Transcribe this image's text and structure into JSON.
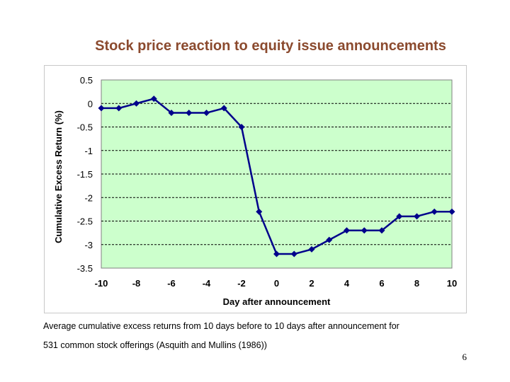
{
  "slide": {
    "title": "Stock price reaction to equity issue announcements",
    "caption_line1": "Average cumulative excess returns from 10 days before to 10 days after announcement for",
    "caption_line2": "531 common stock offerings (Asquith and Mullins (1986))",
    "page_number": "6"
  },
  "colors": {
    "title": "#8b4a2e",
    "plot_background": "#ccffcc",
    "series": "#00008b",
    "gridline": "#000000"
  },
  "chart_data": {
    "type": "line",
    "title": "",
    "xlabel": "Day after announcement",
    "ylabel": "Cumulative Excess Return (%)",
    "xlim": [
      -10,
      10
    ],
    "ylim": [
      -3.5,
      0.5
    ],
    "x_ticks": [
      -10,
      -8,
      -6,
      -4,
      -2,
      0,
      2,
      4,
      6,
      8,
      10
    ],
    "y_ticks": [
      0.5,
      0,
      -0.5,
      -1,
      -1.5,
      -2,
      -2.5,
      -3,
      -3.5
    ],
    "grid": "horizontal dashed",
    "legend": "none",
    "series": [
      {
        "name": "Cumulative excess return",
        "x": [
          -10,
          -9,
          -8,
          -7,
          -6,
          -5,
          -4,
          -3,
          -2,
          -1,
          0,
          1,
          2,
          3,
          4,
          5,
          6,
          7,
          8,
          9,
          10
        ],
        "values": [
          -0.1,
          -0.1,
          0.0,
          0.1,
          -0.2,
          -0.2,
          -0.2,
          -0.1,
          -0.5,
          -2.3,
          -3.2,
          -3.2,
          -3.1,
          -2.9,
          -2.7,
          -2.7,
          -2.7,
          -2.4,
          -2.4,
          -2.3,
          -2.3
        ]
      }
    ]
  }
}
